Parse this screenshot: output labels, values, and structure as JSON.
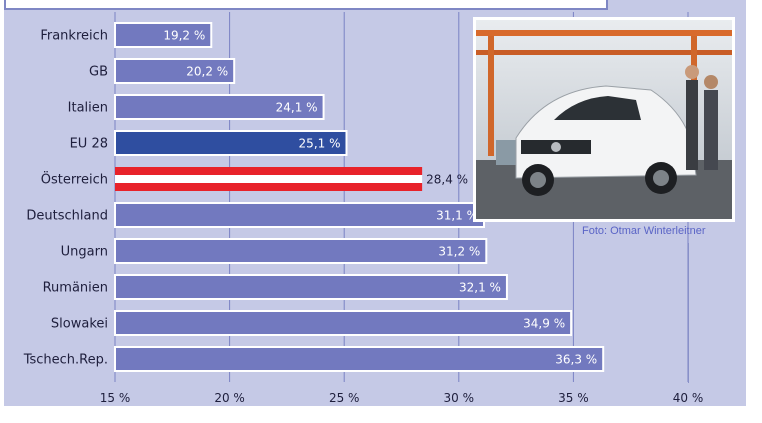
{
  "chart_data": {
    "type": "bar",
    "orientation": "horizontal",
    "categories": [
      "Frankreich",
      "GB",
      "Italien",
      "EU 28",
      "Österreich",
      "Deutschland",
      "Ungarn",
      "Rumänien",
      "Slowakei",
      "Tschech.Rep."
    ],
    "values": [
      19.2,
      20.2,
      24.1,
      25.1,
      28.4,
      31.1,
      31.2,
      32.1,
      34.9,
      36.3
    ],
    "value_labels": [
      "19,2 %",
      "20,2 %",
      "24,1 %",
      "25,1 %",
      "28,4 %",
      "31,1 %",
      "31,2 %",
      "32,1 %",
      "34,9 %",
      "36,3 %"
    ],
    "xlim": [
      15,
      40
    ],
    "ticks": [
      15,
      20,
      25,
      30,
      35,
      40
    ],
    "tick_labels": [
      "15 %",
      "20 %",
      "25 %",
      "30 %",
      "35 %",
      "40 %"
    ],
    "grid": true,
    "highlight": {
      "EU 28": "eu-blue",
      "Österreich": "austria-flag"
    },
    "colors": {
      "bar": "#7279bf",
      "eu": "#2f4ea0",
      "austria_red": "#e8222a",
      "background": "#c5c9e6",
      "grid": "#7a82c4"
    }
  },
  "photo": {
    "credit": "Foto: Otmar Winterleitner",
    "subject": "car-factory-photo"
  }
}
